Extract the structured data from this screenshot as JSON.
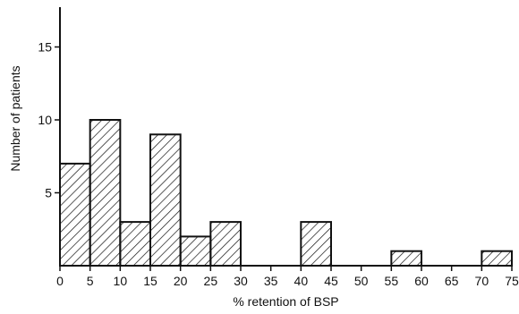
{
  "chart_data": {
    "type": "bar",
    "title": "",
    "xlabel": "% retention of BSP",
    "ylabel": "Number of patients",
    "xlim": [
      0,
      75
    ],
    "ylim": [
      0,
      17
    ],
    "x_ticks": [
      0,
      5,
      10,
      15,
      20,
      25,
      30,
      35,
      40,
      45,
      50,
      55,
      60,
      65,
      70,
      75
    ],
    "y_ticks": [
      5,
      10,
      15
    ],
    "bins": [
      {
        "start": 0,
        "end": 5,
        "value": 7
      },
      {
        "start": 5,
        "end": 10,
        "value": 10
      },
      {
        "start": 10,
        "end": 15,
        "value": 3
      },
      {
        "start": 15,
        "end": 20,
        "value": 9
      },
      {
        "start": 20,
        "end": 25,
        "value": 2
      },
      {
        "start": 25,
        "end": 30,
        "value": 3
      },
      {
        "start": 30,
        "end": 35,
        "value": 0
      },
      {
        "start": 35,
        "end": 40,
        "value": 0
      },
      {
        "start": 40,
        "end": 45,
        "value": 3
      },
      {
        "start": 45,
        "end": 50,
        "value": 0
      },
      {
        "start": 50,
        "end": 55,
        "value": 0
      },
      {
        "start": 55,
        "end": 60,
        "value": 1
      },
      {
        "start": 60,
        "end": 65,
        "value": 0
      },
      {
        "start": 65,
        "end": 70,
        "value": 0
      },
      {
        "start": 70,
        "end": 75,
        "value": 1
      }
    ],
    "bar_fill": "hatched",
    "grid": false
  }
}
